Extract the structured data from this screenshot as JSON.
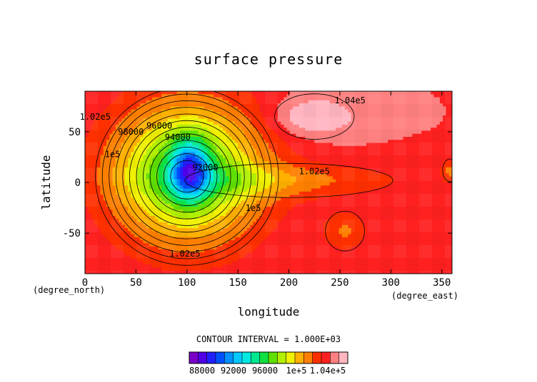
{
  "chart_data": {
    "type": "heatmap",
    "title": "surface pressure",
    "xlabel": "longitude",
    "ylabel": "latitude",
    "x_unit": "(degree_east)",
    "y_unit": "(degree_north)",
    "xlim": [
      0,
      360
    ],
    "ylim": [
      -90,
      90
    ],
    "xticks": [
      "0",
      "50",
      "100",
      "150",
      "200",
      "250",
      "300",
      "350"
    ],
    "yticks": [
      "-50",
      "0",
      "50"
    ],
    "field": {
      "background": 103000,
      "lows": [
        {
          "lon": 100,
          "lat": 10,
          "value": 90000,
          "rx": 75,
          "ry": 70
        },
        {
          "lon": 103,
          "lat": 12,
          "value": 90500,
          "rx": 18,
          "ry": 28
        }
      ],
      "highs": [
        {
          "lon": 225,
          "lat": 65,
          "value": 104500,
          "rx": 30,
          "ry": 14
        }
      ],
      "tongues": [
        {
          "lon": 200,
          "lat": 2,
          "value": 101500,
          "rx": 85,
          "ry": 12
        },
        {
          "lon": 255,
          "lat": -48,
          "value": 101500,
          "rx": 16,
          "ry": 14
        },
        {
          "lon": 358,
          "lat": 12,
          "value": 101500,
          "rx": 6,
          "ry": 8
        }
      ]
    },
    "contour_labels": [
      {
        "text": "1.04e5",
        "lon": 260,
        "lat": 78
      },
      {
        "text": "1.02e5",
        "lon": 225,
        "lat": 8
      },
      {
        "text": "1.02e5",
        "lon": 10,
        "lat": 62
      },
      {
        "text": "1e5",
        "lon": 27,
        "lat": 25
      },
      {
        "text": "98000",
        "lon": 45,
        "lat": 47
      },
      {
        "text": "96000",
        "lon": 73,
        "lat": 53
      },
      {
        "text": "94000",
        "lon": 91,
        "lat": 42
      },
      {
        "text": "92000",
        "lon": 118,
        "lat": 12
      },
      {
        "text": "1e5",
        "lon": 165,
        "lat": -28
      },
      {
        "text": "1.02e5",
        "lon": 98,
        "lat": -73
      }
    ],
    "contour_interval_text": "CONTOUR INTERVAL = 1.000E+03",
    "colorbar": {
      "levels": [
        86000,
        87000,
        88000,
        89000,
        90000,
        91000,
        92000,
        93000,
        94000,
        95000,
        96000,
        97000,
        98000,
        99000,
        100000,
        101000,
        102000,
        103000,
        104000,
        105000
      ],
      "colors": [
        "#7a00c8",
        "#5000e6",
        "#2020ff",
        "#0050ff",
        "#0090ff",
        "#00c8ff",
        "#00e8e0",
        "#00e890",
        "#10e040",
        "#60e000",
        "#b0f000",
        "#f0f000",
        "#ffb000",
        "#ff8000",
        "#ff3000",
        "#ff2020",
        "#ff8080",
        "#ffb6c1"
      ],
      "tick_labels": [
        "88000",
        "92000",
        "96000",
        "1e+5",
        "1.04e+5"
      ]
    }
  }
}
